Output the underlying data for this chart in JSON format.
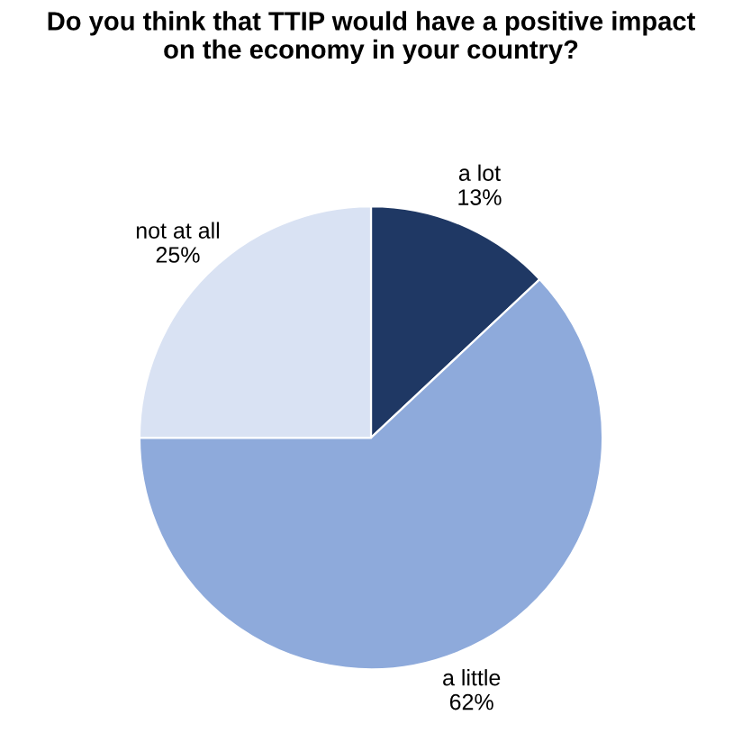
{
  "chart_data": {
    "type": "pie",
    "title": "Do you think that TTIP would have a positive impact\non the economy in your country?",
    "categories": [
      "a lot",
      "a little",
      "not at all"
    ],
    "values": [
      13,
      62,
      25
    ],
    "colors": [
      "#1f3864",
      "#8eaadb",
      "#d9e2f3"
    ],
    "value_labels": [
      "13%",
      "62%",
      "25%"
    ]
  }
}
